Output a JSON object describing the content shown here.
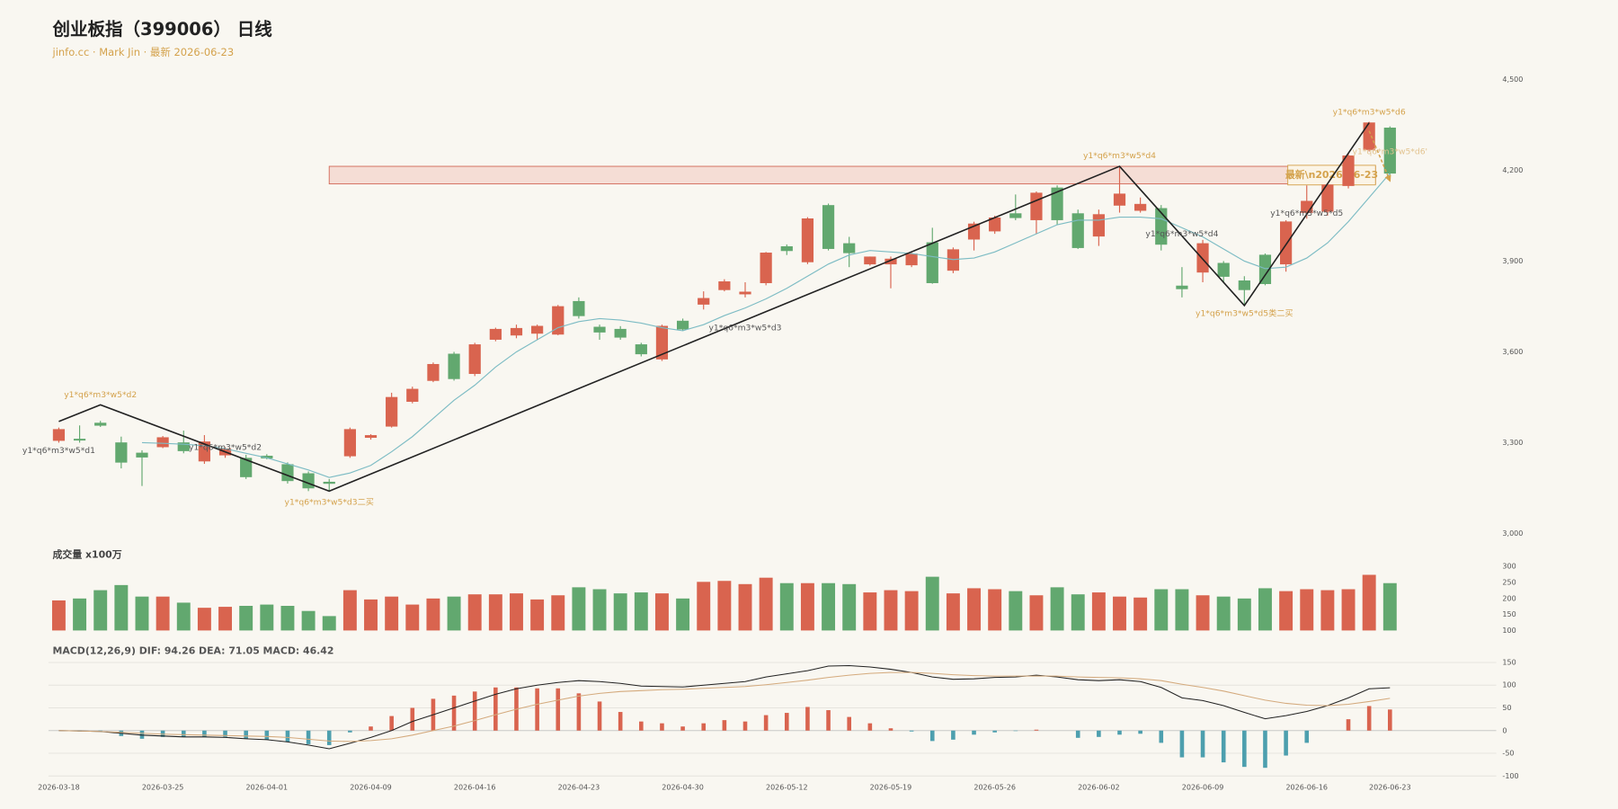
{
  "header": {
    "title": "创业板指（399006） 日线",
    "subtitle": "jinfo.cc · Mark Jin · 最新 2026-06-23"
  },
  "chart_data": [
    {
      "type": "candlestick",
      "up_color": "#d9644f",
      "down_color": "#62a86f",
      "open": [
        3307,
        3312,
        3365,
        3300,
        3266,
        3286,
        3300,
        3239,
        3259,
        3249,
        3256,
        3228,
        3198,
        3170,
        3256,
        3317,
        3354,
        3436,
        3505,
        3593,
        3528,
        3641,
        3655,
        3661,
        3658,
        3767,
        3682,
        3675,
        3624,
        3576,
        3702,
        3757,
        3805,
        3791,
        3828,
        3948,
        3897,
        4084,
        3958,
        3890,
        3890,
        3887,
        3961,
        3869,
        3972,
        3999,
        4057,
        4036,
        4142,
        4057,
        3982,
        4084,
        4067,
        4074,
        3818,
        3863,
        3893,
        3835,
        3920,
        3890,
        4060,
        4064,
        4149,
        4268,
        4340
      ],
      "high": [
        3350,
        3357,
        3372,
        3320,
        3275,
        3322,
        3340,
        3325,
        3285,
        3260,
        3262,
        3235,
        3205,
        3180,
        3350,
        3328,
        3465,
        3485,
        3565,
        3600,
        3630,
        3680,
        3690,
        3690,
        3755,
        3780,
        3690,
        3685,
        3630,
        3690,
        3710,
        3800,
        3840,
        3830,
        3930,
        3955,
        4045,
        4090,
        3980,
        3915,
        3915,
        3930,
        4010,
        3945,
        4030,
        4050,
        4120,
        4130,
        4150,
        4070,
        4070,
        4213,
        4110,
        4085,
        3880,
        3970,
        3900,
        3850,
        3925,
        4035,
        4150,
        4155,
        4255,
        4360,
        4345
      ],
      "low": [
        3300,
        3300,
        3352,
        3215,
        3157,
        3282,
        3265,
        3230,
        3250,
        3180,
        3245,
        3165,
        3140,
        3140,
        3250,
        3310,
        3350,
        3430,
        3500,
        3505,
        3520,
        3635,
        3645,
        3640,
        3655,
        3710,
        3640,
        3640,
        3585,
        3570,
        3670,
        3740,
        3800,
        3780,
        3820,
        3920,
        3890,
        3935,
        3880,
        3885,
        3810,
        3880,
        3825,
        3860,
        3935,
        3990,
        4035,
        3990,
        4020,
        3940,
        3950,
        4060,
        4060,
        3935,
        3780,
        3830,
        3830,
        3755,
        3820,
        3865,
        4040,
        4050,
        4140,
        4262,
        4185
      ],
      "close": [
        3344,
        3308,
        3357,
        3235,
        3252,
        3317,
        3273,
        3303,
        3280,
        3187,
        3249,
        3174,
        3150,
        3165,
        3344,
        3324,
        3450,
        3477,
        3559,
        3511,
        3624,
        3675,
        3678,
        3685,
        3750,
        3719,
        3665,
        3648,
        3593,
        3685,
        3675,
        3777,
        3832,
        3798,
        3927,
        3934,
        4040,
        3941,
        3927,
        3914,
        3907,
        3924,
        3828,
        3938,
        4023,
        4043,
        4043,
        4125,
        4036,
        3944,
        4054,
        4122,
        4088,
        3955,
        3808,
        3958,
        3849,
        3805,
        3825,
        4030,
        4098,
        4152,
        4248,
        4357,
        4190
      ],
      "ma": {
        "color": "#7dbcc4",
        "values": [
          null,
          null,
          null,
          null,
          3300,
          3298,
          3295,
          3290,
          3280,
          3265,
          3250,
          3230,
          3210,
          3185,
          3200,
          3225,
          3270,
          3320,
          3380,
          3440,
          3490,
          3550,
          3600,
          3640,
          3680,
          3700,
          3710,
          3705,
          3695,
          3680,
          3670,
          3690,
          3720,
          3745,
          3775,
          3810,
          3850,
          3890,
          3920,
          3935,
          3930,
          3925,
          3915,
          3905,
          3910,
          3930,
          3960,
          3990,
          4020,
          4035,
          4035,
          4045,
          4045,
          4040,
          4010,
          3980,
          3940,
          3900,
          3875,
          3880,
          3910,
          3960,
          4030,
          4110,
          4190
        ]
      },
      "zigzag": {
        "color": "#222222",
        "x": [
          0,
          2,
          13,
          51,
          57,
          63
        ],
        "values": [
          3370,
          3425,
          3140,
          4213,
          3753,
          4357
        ]
      },
      "projection": {
        "color": "#d4a24c",
        "x": [
          63,
          64
        ],
        "values": [
          4330,
          4165
        ]
      },
      "zone": {
        "x": [
          13,
          64
        ],
        "y": [
          4155,
          4213
        ],
        "label": "最新\\n2026-06-23"
      },
      "annotations": [
        {
          "text": "y1*q6*m3*w5*d2",
          "x": 2,
          "y": 3457,
          "color": "#d4a24c"
        },
        {
          "text": "y1*q6*m3*w5*d1",
          "x": 0,
          "y": 3273,
          "color": "#555555"
        },
        {
          "text": "y1*q6*m3*w5*d2",
          "x": 8,
          "y": 3283,
          "color": "#555555"
        },
        {
          "text": "y1*q6*m3*w5*d3二买",
          "x": 13,
          "y": 3102,
          "color": "#d4a24c"
        },
        {
          "text": "y1*q6*m3*w5*d3",
          "x": 33,
          "y": 3678,
          "color": "#555555"
        },
        {
          "text": "y1*q6*m3*w5*d4",
          "x": 51,
          "y": 4248,
          "color": "#d4a24c"
        },
        {
          "text": "y1*q6*m3*w5*d4",
          "x": 54,
          "y": 3989,
          "color": "#555555"
        },
        {
          "text": "y1*q6*m3*w5*d5类二买",
          "x": 57,
          "y": 3726,
          "color": "#d4a24c"
        },
        {
          "text": "y1*q6*m3*w5*d5",
          "x": 60,
          "y": 4057,
          "color": "#555555"
        },
        {
          "text": "y1*q6*m3*w5*d6",
          "x": 63,
          "y": 4391,
          "color": "#d4a24c"
        },
        {
          "text": "y1*q6*m3*w5*d6'",
          "x": 64,
          "y": 4261,
          "color": "#e2c38f"
        }
      ],
      "ylim": [
        3000,
        4500
      ],
      "yticks": [
        {
          "value": 3000,
          "label": "3,000"
        },
        {
          "value": 3300,
          "label": "3,300"
        },
        {
          "value": 3600,
          "label": "3,600"
        },
        {
          "value": 3900,
          "label": "3,900"
        },
        {
          "value": 4200,
          "label": "4,200"
        },
        {
          "value": 4500,
          "label": "4,500"
        }
      ],
      "grid": false
    },
    {
      "type": "volume",
      "title": "成交量 x100万",
      "values": [
        194,
        200,
        226,
        242,
        206,
        206,
        187,
        171,
        174,
        177,
        181,
        177,
        161,
        145,
        226,
        197,
        206,
        181,
        200,
        206,
        213,
        213,
        216,
        197,
        210,
        235,
        229,
        216,
        219,
        216,
        200,
        252,
        255,
        245,
        265,
        248,
        248,
        248,
        245,
        219,
        226,
        223,
        268,
        216,
        232,
        229,
        223,
        210,
        235,
        213,
        219,
        206,
        203,
        229,
        229,
        210,
        206,
        200,
        232,
        223,
        229,
        226,
        229,
        274,
        248
      ],
      "ylim": [
        100,
        300
      ],
      "yticks": [
        100,
        150,
        200,
        250,
        300
      ],
      "grid": false
    },
    {
      "type": "macd",
      "title": "MACD(12,26,9) DIF: 94.26 DEA: 71.05 MACD: 46.42",
      "categories": [
        "2026-03-18",
        null,
        null,
        null,
        null,
        "2026-03-25",
        null,
        null,
        null,
        null,
        "2026-04-01",
        null,
        null,
        null,
        null,
        "2026-04-09",
        null,
        null,
        null,
        null,
        "2026-04-16",
        null,
        null,
        null,
        null,
        "2026-04-23",
        null,
        null,
        null,
        null,
        "2026-04-30",
        null,
        null,
        null,
        null,
        "2026-05-12",
        null,
        null,
        null,
        null,
        "2026-05-19",
        null,
        null,
        null,
        null,
        "2026-05-26",
        null,
        null,
        null,
        null,
        "2026-06-02",
        null,
        null,
        null,
        null,
        "2026-06-09",
        null,
        null,
        null,
        null,
        "2026-06-16",
        null,
        null,
        null,
        "2026-06-23"
      ],
      "series": [
        {
          "name": "MACD",
          "kind": "bar",
          "color": "#d9644f",
          "negative_color": "#4d9fae",
          "values": [
            0,
            -2,
            -1,
            -12,
            -18,
            -14,
            -14,
            -14,
            -14,
            -18,
            -20,
            -25,
            -30,
            -32,
            -4,
            9,
            32,
            50,
            70,
            77,
            86,
            95,
            95,
            93,
            93,
            82,
            64,
            41,
            20,
            16,
            9,
            16,
            23,
            20,
            34,
            39,
            52,
            45,
            30,
            16,
            5,
            -2,
            -23,
            -20,
            -9,
            -4,
            -1,
            2,
            0,
            -16,
            -14,
            -9,
            -7,
            -27,
            -59,
            -59,
            -70,
            -80,
            -82,
            -55,
            -27,
            0,
            25,
            54,
            46.42
          ]
        },
        {
          "name": "DIF",
          "kind": "line",
          "color": "#222222",
          "values": [
            0,
            -1,
            -2,
            -6,
            -10,
            -12,
            -14,
            -14,
            -15,
            -18,
            -20,
            -25,
            -32,
            -40,
            -28,
            -15,
            0,
            20,
            35,
            50,
            65,
            80,
            92,
            100,
            106,
            110,
            108,
            104,
            98,
            97,
            96,
            100,
            104,
            108,
            118,
            125,
            132,
            142,
            143,
            140,
            135,
            128,
            118,
            113,
            114,
            117,
            118,
            122,
            118,
            112,
            110,
            112,
            108,
            95,
            72,
            66,
            55,
            40,
            26,
            33,
            42,
            55,
            72,
            92,
            94.26
          ]
        },
        {
          "name": "DEA",
          "kind": "line",
          "color": "#d4aa7d",
          "values": [
            0,
            -1,
            -2,
            -4,
            -6,
            -8,
            -9,
            -10,
            -11,
            -12,
            -13,
            -15,
            -19,
            -23,
            -24,
            -22,
            -18,
            -10,
            0,
            10,
            22,
            35,
            47,
            58,
            67,
            76,
            82,
            86,
            88,
            90,
            91,
            93,
            95,
            97,
            101,
            106,
            111,
            117,
            122,
            126,
            128,
            128,
            126,
            123,
            121,
            120,
            120,
            120,
            120,
            118,
            117,
            116,
            114,
            110,
            102,
            95,
            87,
            77,
            67,
            60,
            56,
            55,
            58,
            64,
            71.05
          ]
        }
      ],
      "ylim": [
        -100,
        150
      ],
      "yticks": [
        -100,
        -50,
        0,
        50,
        100,
        150
      ],
      "grid": true
    }
  ]
}
